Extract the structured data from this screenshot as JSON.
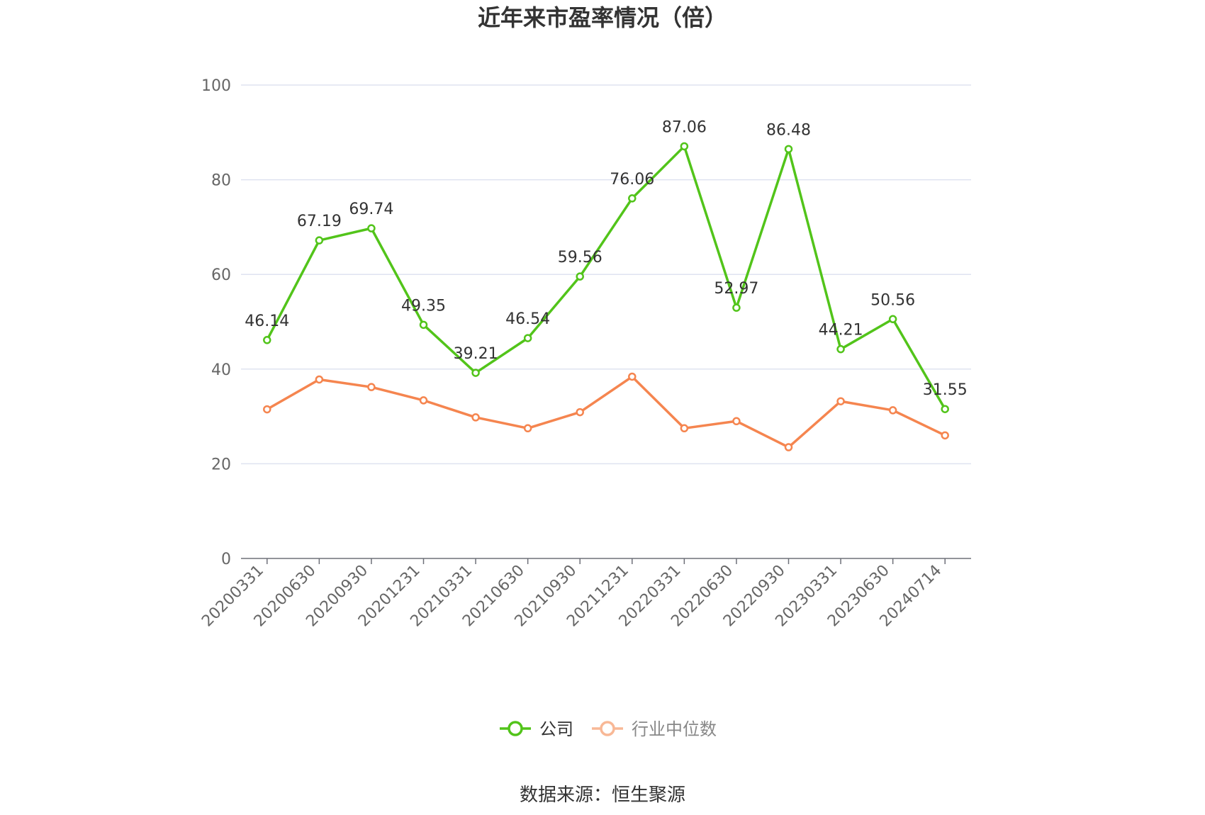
{
  "chart_data": {
    "type": "line",
    "title": "近年来市盈率情况（倍）",
    "categories": [
      "20200331",
      "20200630",
      "20200930",
      "20201231",
      "20210331",
      "20210630",
      "20210930",
      "20211231",
      "20220331",
      "20220630",
      "20220930",
      "20230331",
      "20230630",
      "20240714"
    ],
    "series": [
      {
        "name": "公司",
        "color": "#52c41a",
        "values": [
          46.14,
          67.19,
          69.74,
          49.35,
          39.21,
          46.54,
          59.56,
          76.06,
          87.06,
          52.97,
          86.48,
          44.21,
          50.56,
          31.55
        ]
      },
      {
        "name": "行业中位数",
        "color": "#f5854f",
        "values": [
          31.5,
          37.8,
          36.2,
          33.4,
          29.8,
          27.5,
          30.9,
          38.4,
          27.5,
          29.0,
          23.5,
          33.2,
          31.3,
          26.0
        ]
      }
    ],
    "data_labels_series": "公司",
    "ylim": [
      0,
      100
    ],
    "yticks": [
      0,
      20,
      40,
      60,
      80,
      100
    ],
    "grid": true,
    "legend": "bottom",
    "source": "数据来源：恒生聚源"
  }
}
